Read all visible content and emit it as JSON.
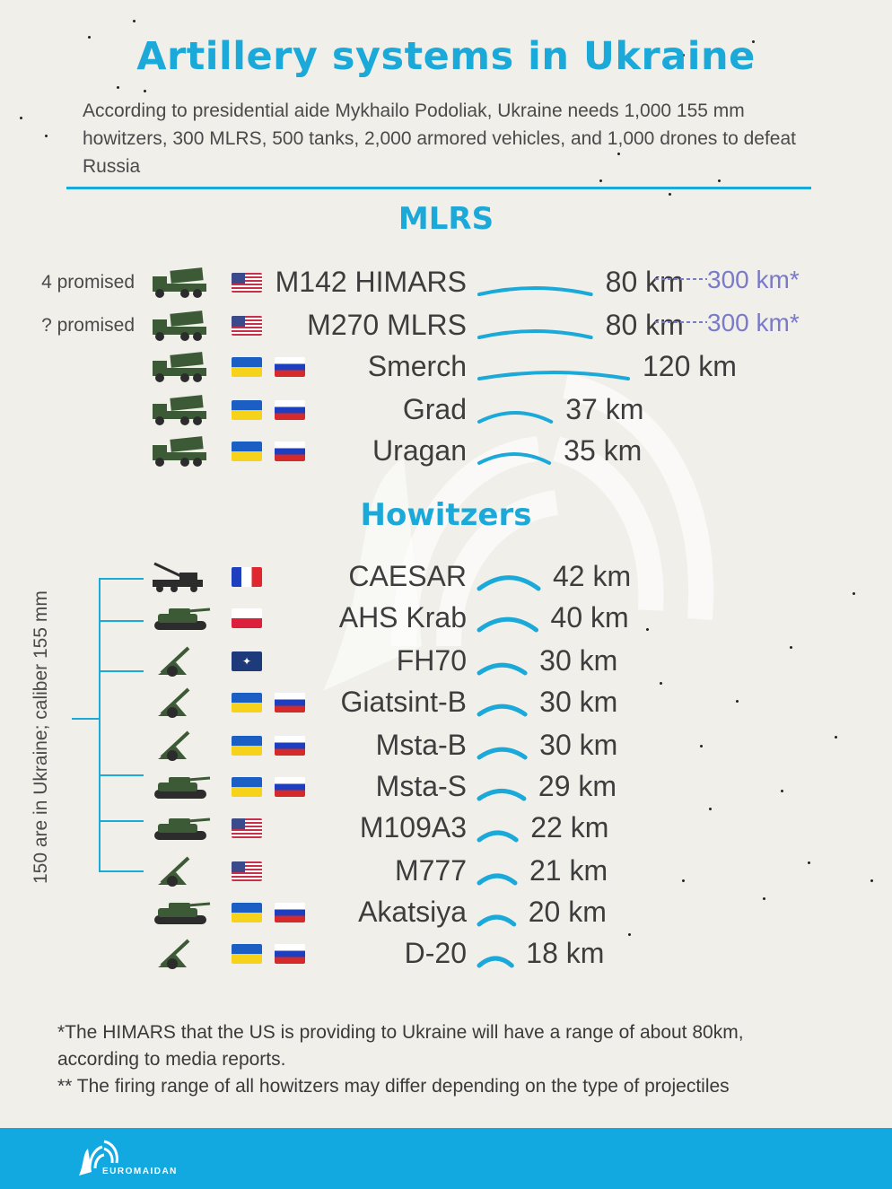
{
  "title": "Artillery systems in Ukraine",
  "intro": "According to presidential aide Mykhailo Podoliak, Ukraine needs 1,000 155 mm howitzers, 300 MLRS, 500 tanks, 2,000 armored vehicles, and 1,000 drones to defeat Russia",
  "sections": {
    "mlrs_title": "MLRS",
    "howitzers_title": "Howitzers"
  },
  "colors": {
    "accent": "#1aa9d8",
    "arc": "#1aa9d8",
    "extended_range": "#7a7ac8",
    "vehicle": "#3d5a36"
  },
  "mlrs": [
    {
      "promised": "4 promised",
      "icon": "rocket-launcher-truck-icon",
      "flags": [
        "us"
      ],
      "name": "M142 HIMARS",
      "range": "80 km",
      "range_ext": "300 km*",
      "range_km": 80,
      "range_ext_km": 300
    },
    {
      "promised": "? promised",
      "icon": "rocket-launcher-truck-icon",
      "flags": [
        "us"
      ],
      "name": "M270 MLRS",
      "range": "80 km",
      "range_ext": "300 km*",
      "range_km": 80,
      "range_ext_km": 300
    },
    {
      "promised": "",
      "icon": "rocket-launcher-truck-icon",
      "flags": [
        "ua",
        "ru"
      ],
      "name": "Smerch",
      "range": "120 km",
      "range_km": 120
    },
    {
      "promised": "",
      "icon": "rocket-launcher-truck-icon",
      "flags": [
        "ua",
        "ru"
      ],
      "name": "Grad",
      "range": "37 km",
      "range_km": 37
    },
    {
      "promised": "",
      "icon": "rocket-launcher-truck-icon",
      "flags": [
        "ua",
        "ru"
      ],
      "name": "Uragan",
      "range": "35 km",
      "range_km": 35
    }
  ],
  "howitzers": [
    {
      "icon": "truck-howitzer-icon",
      "flags": [
        "fr"
      ],
      "name": "CAESAR",
      "range": "42 km",
      "range_km": 42
    },
    {
      "icon": "self-propelled-howitzer-icon",
      "flags": [
        "pl"
      ],
      "name": "AHS Krab",
      "range": "40 km",
      "range_km": 40
    },
    {
      "icon": "towed-howitzer-icon",
      "flags": [
        "nato"
      ],
      "name": "FH70",
      "range": "30 km",
      "range_km": 30
    },
    {
      "icon": "towed-howitzer-icon",
      "flags": [
        "ua",
        "ru"
      ],
      "name": "Giatsint-B",
      "range": "30 km",
      "range_km": 30
    },
    {
      "icon": "towed-howitzer-icon",
      "flags": [
        "ua",
        "ru"
      ],
      "name": "Msta-B",
      "range": "30 km",
      "range_km": 30
    },
    {
      "icon": "self-propelled-howitzer-icon",
      "flags": [
        "ua",
        "ru"
      ],
      "name": "Msta-S",
      "range": "29 km",
      "range_km": 29
    },
    {
      "icon": "self-propelled-howitzer-icon",
      "flags": [
        "us"
      ],
      "name": "M109A3",
      "range": "22 km",
      "range_km": 22
    },
    {
      "icon": "towed-howitzer-icon",
      "flags": [
        "us"
      ],
      "name": "M777",
      "range": "21 km",
      "range_km": 21
    },
    {
      "icon": "self-propelled-howitzer-icon",
      "flags": [
        "ua",
        "ru"
      ],
      "name": "Akatsiya",
      "range": "20 km",
      "range_km": 20
    },
    {
      "icon": "towed-howitzer-icon",
      "flags": [
        "ua",
        "ru"
      ],
      "name": "D-20",
      "range": "18 km",
      "range_km": 18
    }
  ],
  "bracket_label": "150 are in Ukraine; caliber 155 mm",
  "footnotes": [
    "*The HIMARS that the US is providing to Ukraine will have a range of about 80km, according to media reports.",
    "** The firing range of all howitzers may differ depending on the type of projectiles"
  ],
  "footer": {
    "logo_text": "EUROMAIDAN",
    "logo_icon": "euromaidan-logo-icon"
  }
}
